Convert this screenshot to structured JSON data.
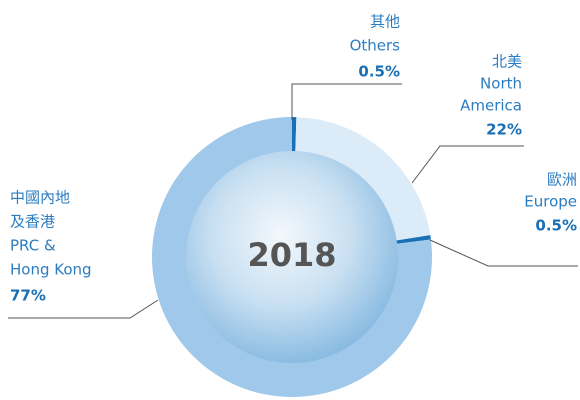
{
  "chart_data": {
    "type": "donut",
    "title": "2018",
    "categories": [
      [
        "其他",
        "Others"
      ],
      [
        "北美",
        "North",
        "America"
      ],
      [
        "歐洲",
        "Europe"
      ],
      [
        "中國內地",
        "及香港",
        "PRC &",
        "Hong Kong"
      ]
    ],
    "values": [
      0.5,
      22,
      0.5,
      77
    ],
    "value_labels": [
      "0.5%",
      "22%",
      "0.5%",
      "77%"
    ],
    "colors": [
      "#1a6fb5",
      "#dcebf8",
      "#1a6fb5",
      "#9fc8eb"
    ]
  }
}
